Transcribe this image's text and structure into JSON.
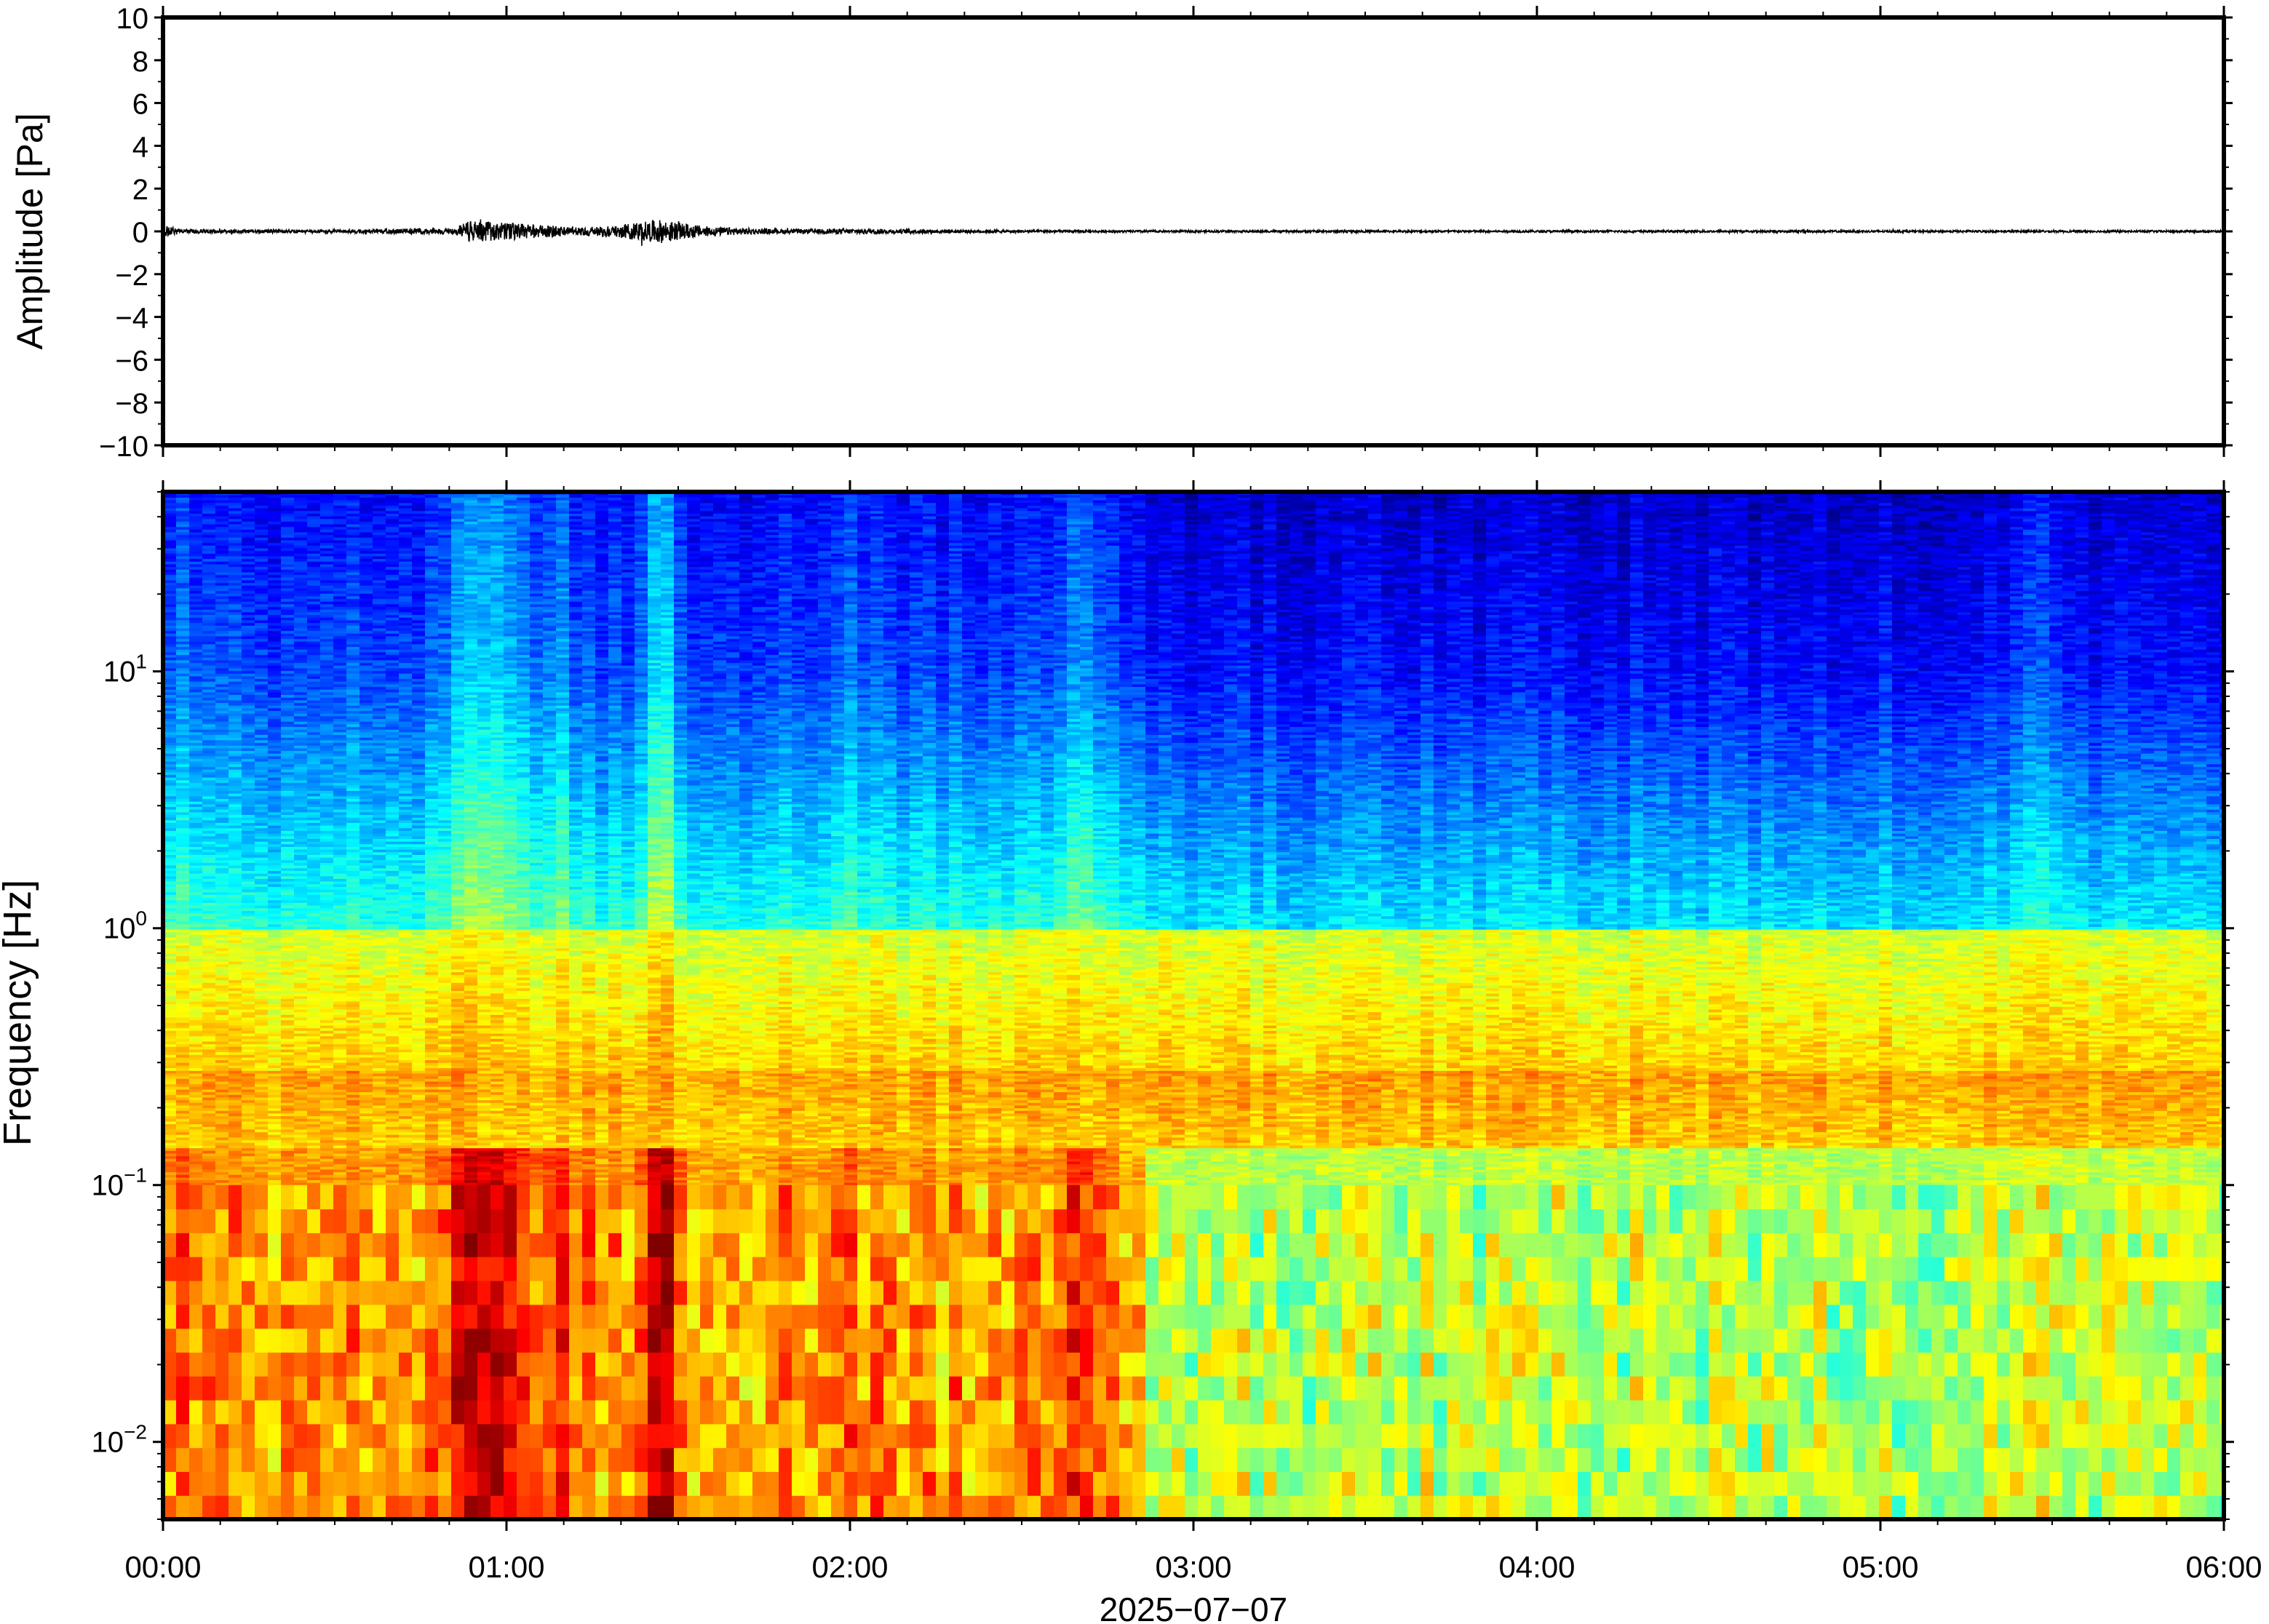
{
  "chart_data": [
    {
      "type": "line",
      "panel": "waveform",
      "ylabel": "Amplitude [Pa]",
      "ylim": [
        -10,
        10
      ],
      "yticks": [
        10,
        8,
        6,
        4,
        2,
        0,
        -2,
        -4,
        -6,
        -8,
        -10
      ],
      "ytick_labels": [
        "10",
        "8",
        "6",
        "4",
        "2",
        "0",
        "−2",
        "−4",
        "−6",
        "−8",
        "−10"
      ],
      "xlim_hours": [
        0,
        6
      ],
      "grid": false,
      "series": [
        {
          "color": "#000000",
          "x_hours": [
            0.0,
            0.05,
            0.5,
            0.85,
            0.88,
            0.95,
            1.0,
            1.05,
            1.1,
            1.2,
            1.3,
            1.4,
            1.45,
            1.5,
            1.6,
            1.8,
            2.0,
            2.5,
            3.0,
            4.0,
            5.0,
            6.0
          ],
          "envelope_pa": [
            0.3,
            0.1,
            0.08,
            0.15,
            0.5,
            0.45,
            0.4,
            0.35,
            0.3,
            0.2,
            0.25,
            0.45,
            0.55,
            0.4,
            0.2,
            0.1,
            0.12,
            0.06,
            0.05,
            0.05,
            0.05,
            0.05
          ]
        }
      ]
    },
    {
      "type": "heatmap",
      "panel": "spectrogram",
      "ylabel": "Frequency [Hz]",
      "yscale": "log",
      "ylim_hz": [
        0.005,
        50
      ],
      "yticks_hz": [
        10,
        1,
        0.1,
        0.01
      ],
      "ytick_labels": [
        {
          "base": "10",
          "exp": "1"
        },
        {
          "base": "10",
          "exp": "0"
        },
        {
          "base": "10",
          "exp": "−1"
        },
        {
          "base": "10",
          "exp": "−2"
        }
      ],
      "xlim_hours": [
        0,
        6
      ],
      "colormap": "jet",
      "grid": false
    }
  ],
  "x_axis": {
    "tick_labels": [
      "00:00",
      "01:00",
      "02:00",
      "03:00",
      "04:00",
      "05:00",
      "06:00"
    ],
    "label": "2025−07−07"
  }
}
